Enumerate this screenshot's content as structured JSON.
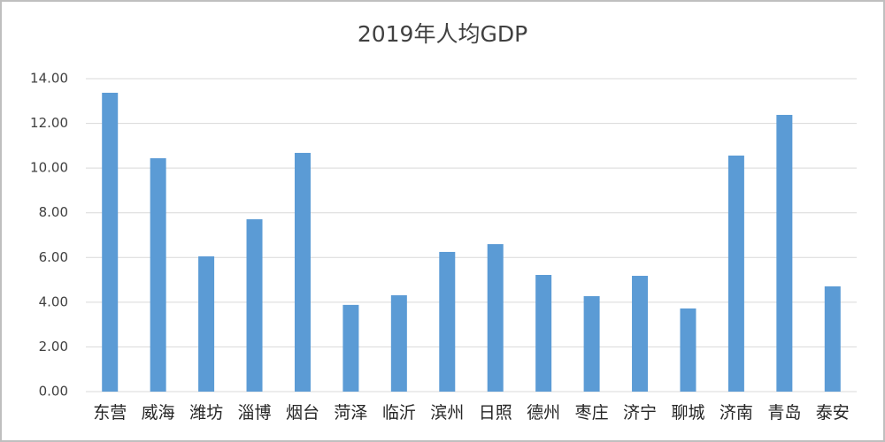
{
  "chart_data": {
    "type": "bar",
    "title": "2019年人均GDP",
    "categories": [
      "东营",
      "威海",
      "潍坊",
      "淄博",
      "烟台",
      "菏泽",
      "临沂",
      "滨州",
      "日照",
      "德州",
      "枣庄",
      "济宁",
      "聊城",
      "济南",
      "青岛",
      "泰安"
    ],
    "values": [
      13.37,
      10.44,
      6.05,
      7.71,
      10.68,
      3.88,
      4.31,
      6.25,
      6.6,
      5.22,
      4.27,
      5.18,
      3.72,
      10.56,
      12.38,
      4.71
    ],
    "color": "#5b9bd5",
    "ylim": [
      0,
      14
    ],
    "yticks": [
      {
        "value": 0,
        "label": "0.00"
      },
      {
        "value": 2,
        "label": "2.00"
      },
      {
        "value": 4,
        "label": "4.00"
      },
      {
        "value": 6,
        "label": "6.00"
      },
      {
        "value": 8,
        "label": "8.00"
      },
      {
        "value": 10,
        "label": "10.00"
      },
      {
        "value": 12,
        "label": "12.00"
      },
      {
        "value": 14,
        "label": "14.00"
      }
    ],
    "grid": true
  }
}
